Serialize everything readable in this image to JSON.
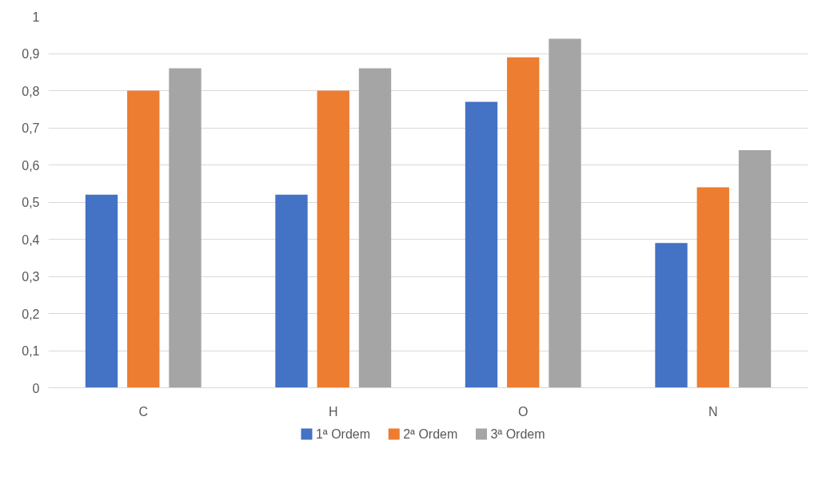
{
  "chart_data": {
    "type": "bar",
    "categories": [
      "C",
      "H",
      "O",
      "N"
    ],
    "series": [
      {
        "name": "1ª Ordem",
        "color": "#4472c4",
        "values": [
          0.52,
          0.52,
          0.77,
          0.39
        ]
      },
      {
        "name": "2ª Ordem",
        "color": "#ed7d31",
        "values": [
          0.8,
          0.8,
          0.89,
          0.54
        ]
      },
      {
        "name": "3ª Ordem",
        "color": "#a5a5a5",
        "values": [
          0.86,
          0.86,
          0.94,
          0.64
        ]
      }
    ],
    "ylim": [
      0,
      1
    ],
    "yticks": [
      0,
      {
        "value": 0.1,
        "label": "0,1"
      },
      {
        "value": 0.2,
        "label": "0,2"
      },
      {
        "value": 0.3,
        "label": "0,3"
      },
      {
        "value": 0.4,
        "label": "0,4"
      },
      {
        "value": 0.5,
        "label": "0,5"
      },
      {
        "value": 0.6,
        "label": "0,6"
      },
      {
        "value": 0.7,
        "label": "0,7"
      },
      {
        "value": 0.8,
        "label": "0,8"
      },
      {
        "value": 0.9,
        "label": "0,9"
      },
      1
    ],
    "grid": "y",
    "legend": "bottom"
  }
}
